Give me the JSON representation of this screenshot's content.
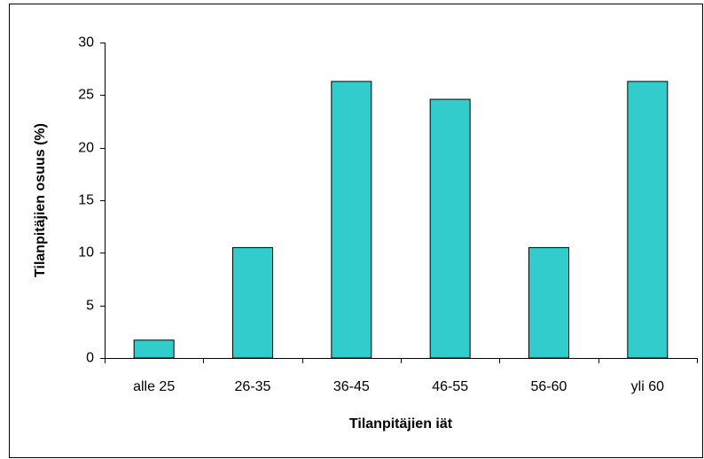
{
  "chart_data": {
    "type": "bar",
    "x_label": "Tilanpitäjien iät",
    "y_label": "Tilanpitäjien osuus (%)",
    "categories": [
      "alle 25",
      "26-35",
      "36-45",
      "46-55",
      "56-60",
      "yli 60"
    ],
    "values": [
      1.7,
      10.5,
      26.3,
      24.6,
      10.5,
      26.3
    ],
    "color": "#33cccc",
    "ylim": [
      0,
      30
    ],
    "yticks": [
      0,
      5,
      10,
      15,
      20,
      25,
      30
    ],
    "grid": false
  }
}
